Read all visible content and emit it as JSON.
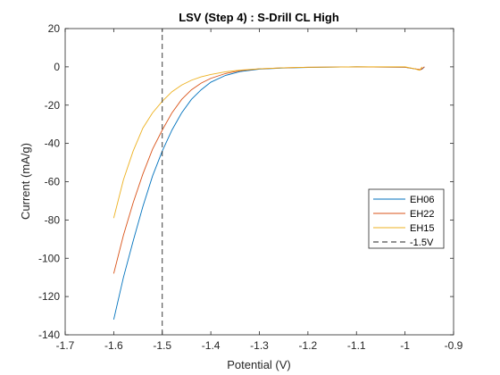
{
  "chart_data": {
    "type": "line",
    "title": "LSV (Step 4) : S-Drill CL High",
    "xlabel": "Potential (V)",
    "ylabel": "Current (mA/g)",
    "xlim": [
      -1.7,
      -0.9
    ],
    "ylim": [
      -140,
      20
    ],
    "xticks": [
      -1.7,
      -1.6,
      -1.5,
      -1.4,
      -1.3,
      -1.2,
      -1.1,
      -1,
      -0.9
    ],
    "xtick_labels": [
      "-1.7",
      "-1.6",
      "-1.5",
      "-1.4",
      "-1.3",
      "-1.2",
      "-1.1",
      "-1",
      "-0.9"
    ],
    "yticks": [
      -140,
      -120,
      -100,
      -80,
      -60,
      -40,
      -20,
      0,
      20
    ],
    "ytick_labels": [
      "-140",
      "-120",
      "-100",
      "-80",
      "-60",
      "-40",
      "-20",
      "0",
      "20"
    ],
    "grid": false,
    "legend_position": "right",
    "series": [
      {
        "name": "EH06",
        "color": "#0072BD",
        "x": [
          -1.6,
          -1.58,
          -1.56,
          -1.54,
          -1.52,
          -1.5,
          -1.48,
          -1.46,
          -1.44,
          -1.42,
          -1.4,
          -1.37,
          -1.34,
          -1.3,
          -1.25,
          -1.2,
          -1.1,
          -1.0,
          -0.97,
          -0.965,
          -0.96
        ],
        "y": [
          -132,
          -110,
          -91,
          -73,
          -57,
          -44,
          -33,
          -24,
          -17,
          -12,
          -8,
          -4.5,
          -2.5,
          -1.2,
          -0.6,
          -0.3,
          0,
          -0.2,
          -1.5,
          -1.2,
          0
        ]
      },
      {
        "name": "EH22",
        "color": "#D95319",
        "x": [
          -1.6,
          -1.58,
          -1.56,
          -1.54,
          -1.52,
          -1.5,
          -1.48,
          -1.46,
          -1.44,
          -1.42,
          -1.4,
          -1.37,
          -1.34,
          -1.3,
          -1.25,
          -1.2,
          -1.1,
          -1.0,
          -0.975,
          -0.968,
          -0.96
        ],
        "y": [
          -108,
          -88,
          -71,
          -56,
          -43,
          -33,
          -24,
          -17,
          -12,
          -8.5,
          -6,
          -3.5,
          -2,
          -1,
          -0.5,
          -0.2,
          0,
          -0.2,
          -1.2,
          -1.5,
          0
        ]
      },
      {
        "name": "EH15",
        "color": "#EDB120",
        "x": [
          -1.6,
          -1.58,
          -1.56,
          -1.54,
          -1.52,
          -1.5,
          -1.48,
          -1.46,
          -1.44,
          -1.42,
          -1.4,
          -1.37,
          -1.34,
          -1.3,
          -1.25,
          -1.2,
          -1.1,
          -1.0,
          -0.98,
          -0.97,
          -0.965
        ],
        "y": [
          -79,
          -59,
          -44,
          -32,
          -24,
          -18,
          -13,
          -9.5,
          -7,
          -5.2,
          -4,
          -2.6,
          -1.7,
          -1,
          -0.5,
          -0.2,
          0,
          0,
          -1,
          -1.8,
          0
        ]
      },
      {
        "name": "-1.5V",
        "color": "#262626",
        "dashed": true,
        "x": [
          -1.5,
          -1.5
        ],
        "y": [
          -140,
          20
        ]
      }
    ]
  }
}
